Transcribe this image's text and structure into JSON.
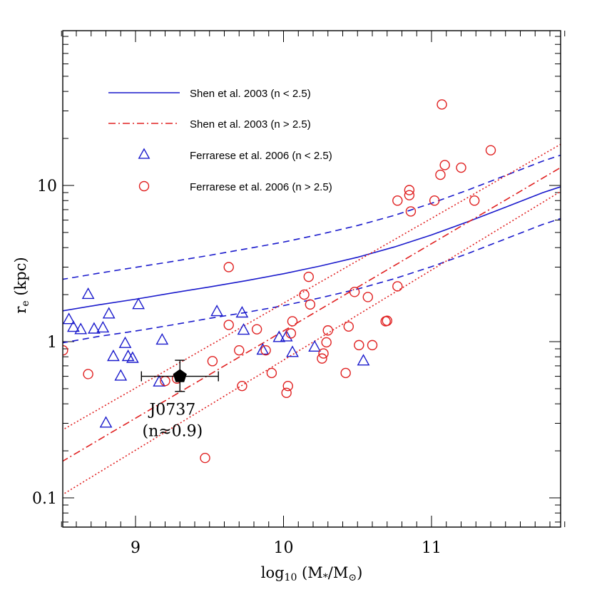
{
  "chart_data": {
    "type": "scatter",
    "title": "",
    "xlabel": "log10 (M*/M⊙)",
    "ylabel": "re (kpc)",
    "xlim": [
      8.5,
      11.9
    ],
    "ylim": [
      0.06,
      100
    ],
    "y_scale": "log",
    "x_ticks": [
      9,
      10,
      11
    ],
    "y_ticks": [
      0.1,
      1,
      10
    ],
    "colors": {
      "blue": "#1a1acc",
      "red": "#e02020",
      "black": "#000000"
    },
    "legend": {
      "placement": "top-left",
      "entries": [
        {
          "label": "Shen et al. 2003 (n < 2.5)",
          "style": "solid-blue"
        },
        {
          "label": "Shen et al. 2003 (n > 2.5)",
          "style": "dashdot-red"
        },
        {
          "label": "Ferrarese et al. 2006 (n < 2.5)",
          "style": "triangle-blue"
        },
        {
          "label": "Ferrarese et al. 2006 (n > 2.5)",
          "style": "circle-red"
        }
      ]
    },
    "lines": [
      {
        "style": "solid-blue",
        "x": [
          8.5,
          8.75,
          9.0,
          9.25,
          9.5,
          9.75,
          10.0,
          10.25,
          10.5,
          10.75,
          11.0,
          11.25,
          11.5,
          11.75,
          11.9
        ],
        "y": [
          1.57,
          1.72,
          1.87,
          2.05,
          2.24,
          2.46,
          2.72,
          3.05,
          3.47,
          4.04,
          4.82,
          5.88,
          7.26,
          8.98,
          10.0
        ]
      },
      {
        "style": "dashed-blue",
        "x": [
          8.5,
          8.75,
          9.0,
          9.25,
          9.5,
          9.75,
          10.0,
          10.25,
          10.5,
          10.75,
          11.0,
          11.25,
          11.5,
          11.75,
          11.9
        ],
        "y": [
          2.5,
          2.74,
          2.99,
          3.26,
          3.57,
          3.93,
          4.34,
          4.87,
          5.54,
          6.44,
          7.69,
          9.38,
          11.58,
          14.3,
          15.95
        ]
      },
      {
        "style": "dashed-blue",
        "x": [
          8.5,
          8.75,
          9.0,
          9.25,
          9.5,
          9.75,
          10.0,
          10.25,
          10.5,
          10.75,
          11.0,
          11.25,
          11.5,
          11.75,
          11.9
        ],
        "y": [
          0.98,
          1.08,
          1.17,
          1.28,
          1.41,
          1.54,
          1.7,
          1.91,
          2.17,
          2.53,
          3.02,
          3.68,
          4.55,
          5.62,
          6.27
        ]
      },
      {
        "style": "dashdot-red",
        "x": [
          8.5,
          11.9
        ],
        "y": [
          0.17,
          13.5
        ]
      },
      {
        "style": "dotted-red",
        "x": [
          8.5,
          11.9
        ],
        "y": [
          0.27,
          19.0
        ]
      },
      {
        "style": "dotted-red",
        "x": [
          8.5,
          11.9
        ],
        "y": [
          0.104,
          9.5
        ]
      }
    ],
    "series": [
      {
        "marker": "triangle-blue",
        "x": [
          8.55,
          8.58,
          8.63,
          8.68,
          8.72,
          8.78,
          8.8,
          8.82,
          8.85,
          8.9,
          8.93,
          8.95,
          8.98,
          9.02,
          9.16,
          9.18,
          9.55,
          9.72,
          9.73,
          9.86,
          9.97,
          10.02,
          10.06,
          10.21,
          10.54
        ],
        "y": [
          1.38,
          1.23,
          1.19,
          2.0,
          1.2,
          1.22,
          0.3,
          1.5,
          0.8,
          0.6,
          0.97,
          0.8,
          0.78,
          1.72,
          0.55,
          1.02,
          1.55,
          1.52,
          1.18,
          0.88,
          1.06,
          1.07,
          0.85,
          0.92,
          0.75
        ]
      },
      {
        "marker": "circle-red",
        "x": [
          8.51,
          8.68,
          9.2,
          9.28,
          9.47,
          9.52,
          9.63,
          9.63,
          9.7,
          9.72,
          9.82,
          9.88,
          9.92,
          10.02,
          10.03,
          10.05,
          10.06,
          10.14,
          10.17,
          10.18,
          10.26,
          10.27,
          10.29,
          10.3,
          10.42,
          10.44,
          10.48,
          10.51,
          10.57,
          10.6,
          10.69,
          10.7,
          10.77,
          10.77,
          10.85,
          10.85,
          10.86,
          11.02,
          11.06,
          11.07,
          11.09,
          11.2,
          11.29,
          11.4
        ],
        "y": [
          0.88,
          0.62,
          0.56,
          0.58,
          0.18,
          0.75,
          1.28,
          3.0,
          0.88,
          0.52,
          1.2,
          0.88,
          0.63,
          0.47,
          0.52,
          1.13,
          1.35,
          2.0,
          2.6,
          1.73,
          0.78,
          0.84,
          0.99,
          1.18,
          0.63,
          1.25,
          2.08,
          0.95,
          1.93,
          0.95,
          1.35,
          1.36,
          2.26,
          8.0,
          8.66,
          9.34,
          6.82,
          8.0,
          11.7,
          33.0,
          13.5,
          13.0,
          8.0,
          16.8
        ]
      },
      {
        "marker": "pentagon-black",
        "name": "J0737",
        "x": [
          9.3
        ],
        "y": [
          0.6
        ],
        "x_err": [
          [
            9.04,
            9.56
          ]
        ],
        "y_err": [
          [
            0.48,
            0.76
          ]
        ]
      }
    ],
    "annotations": [
      {
        "text": "J0737",
        "x": 9.25,
        "y": 0.37
      },
      {
        "text": "(n≈0.9)",
        "x": 9.25,
        "y": 0.27
      }
    ]
  }
}
